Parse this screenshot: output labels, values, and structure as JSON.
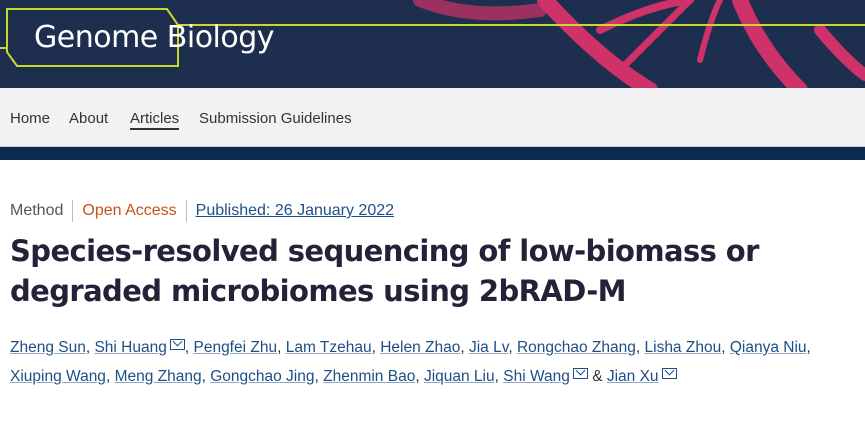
{
  "journal": {
    "name": "Genome Biology"
  },
  "nav": {
    "items": [
      {
        "label": "Home"
      },
      {
        "label": "About"
      },
      {
        "label": "Articles",
        "active": true
      },
      {
        "label": "Submission Guidelines"
      }
    ]
  },
  "article": {
    "type": "Method",
    "access": "Open Access",
    "published": "Published: 26 January 2022",
    "title": "Species-resolved sequencing of low-biomass or degraded microbiomes using 2bRAD-M",
    "authors": [
      {
        "name": "Zheng Sun"
      },
      {
        "name": "Shi Huang",
        "email": true
      },
      {
        "name": "Pengfei Zhu"
      },
      {
        "name": "Lam Tzehau"
      },
      {
        "name": "Helen Zhao"
      },
      {
        "name": "Jia Lv"
      },
      {
        "name": "Rongchao Zhang"
      },
      {
        "name": "Lisha Zhou"
      },
      {
        "name": "Qianya Niu"
      },
      {
        "name": "Xiuping Wang"
      },
      {
        "name": "Meng Zhang"
      },
      {
        "name": "Gongchao Jing"
      },
      {
        "name": "Zhenmin Bao"
      },
      {
        "name": "Jiquan Liu"
      },
      {
        "name": "Shi Wang",
        "email": true
      },
      {
        "name": "Jian Xu",
        "email": true
      }
    ],
    "and": "&"
  },
  "colors": {
    "header": "#1e2e4f",
    "accent_line": "#c8d92b",
    "open_access": "#c8511b",
    "link": "#1f4e85"
  }
}
